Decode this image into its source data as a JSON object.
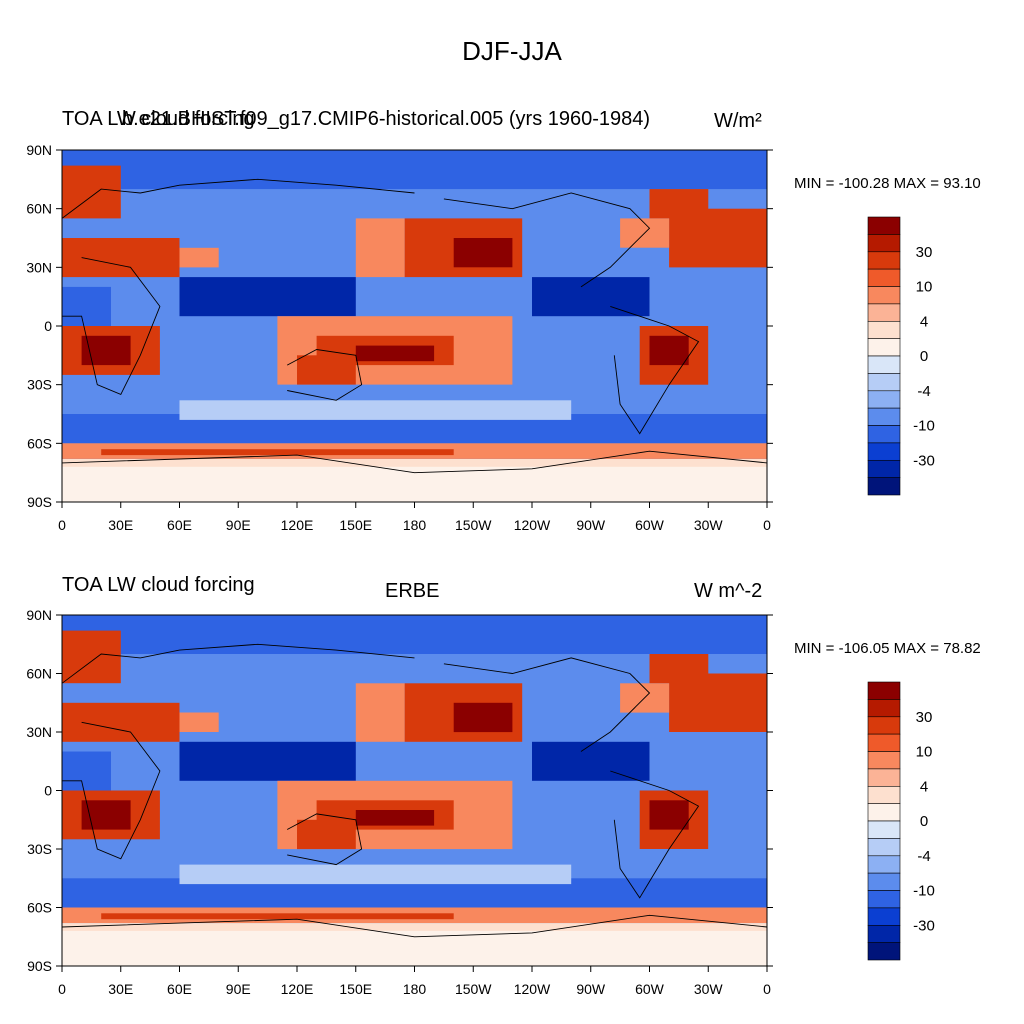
{
  "figure": {
    "title": "DJF-JJA"
  },
  "panels": [
    {
      "left_title": "TOA LW cloud forcing",
      "center_title": "b.e21.BHIST.f09_g17.CMIP6-historical.005 (yrs 1960-1984)",
      "units_html": "W/m²",
      "minmax": "MIN = -100.28 MAX =  93.10"
    },
    {
      "left_title": "TOA LW cloud forcing",
      "center_title": "ERBE",
      "units_html": "W m^-2",
      "minmax": "MIN = -106.05 MAX =  78.82"
    }
  ],
  "chart_data": {
    "type": "heatmap",
    "variable": "TOA LW cloud forcing",
    "season_difference": "DJF-JJA",
    "lat_ticks": [
      "90N",
      "60N",
      "30N",
      "0",
      "30S",
      "60S",
      "90S"
    ],
    "lat_values": [
      90,
      60,
      30,
      0,
      -30,
      -60,
      -90
    ],
    "lon_ticks": [
      "0",
      "30E",
      "60E",
      "90E",
      "120E",
      "150E",
      "180",
      "150W",
      "120W",
      "90W",
      "60W",
      "30W",
      "0"
    ],
    "lon_values": [
      0,
      30,
      60,
      90,
      120,
      150,
      180,
      210,
      240,
      270,
      300,
      330,
      360
    ],
    "colorbar_labels": [
      "30",
      "10",
      "4",
      "0",
      "-4",
      "-10",
      "-30"
    ],
    "colorbar_colors": [
      "#8b0000",
      "#b51a00",
      "#d83a0c",
      "#ef5a2a",
      "#f8885e",
      "#fbb396",
      "#fde0cf",
      "#fdf2ea",
      "#d9e6f8",
      "#b6cdf6",
      "#8cb0f3",
      "#5c8ced",
      "#2f63e3",
      "#0b3fd2",
      "#0026a8",
      "#00147a"
    ],
    "series": [
      {
        "name": "b.e21.BHIST.f09_g17.CMIP6-historical.005 (yrs 1960-1984)",
        "min": -100.28,
        "max": 93.1
      },
      {
        "name": "ERBE",
        "min": -106.05,
        "max": 78.82
      }
    ]
  }
}
